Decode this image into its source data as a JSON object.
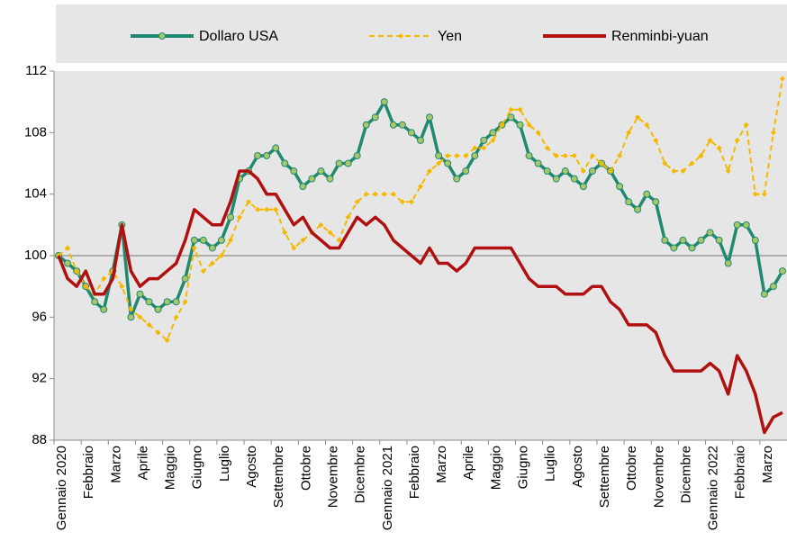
{
  "chart_data": {
    "type": "line",
    "categories": [
      "Gennaio 2020",
      null,
      null,
      "Febbraio",
      null,
      null,
      "Marzo",
      null,
      null,
      "Aprile",
      null,
      null,
      "Maggio",
      null,
      null,
      "Giugno",
      null,
      null,
      "Luglio",
      null,
      null,
      "Agosto",
      null,
      null,
      "Settembre",
      null,
      null,
      "Ottobre",
      null,
      null,
      "Novembre",
      null,
      null,
      "Dicembre",
      null,
      null,
      "Gennaio 2021",
      null,
      null,
      "Febbraio",
      null,
      null,
      "Marzo",
      null,
      null,
      "Aprile",
      null,
      null,
      "Maggio",
      null,
      null,
      "Giugno",
      null,
      null,
      "Luglio",
      null,
      null,
      "Agosto",
      null,
      null,
      "Settembre",
      null,
      null,
      "Ottobre",
      null,
      null,
      "Novembre",
      null,
      null,
      "Dicembre",
      null,
      null,
      "Gennaio 2022",
      null,
      null,
      "Febbraio",
      null,
      null,
      "Marzo",
      null,
      null
    ],
    "series": [
      {
        "name": "Dollaro USA",
        "color": "#1f8a70",
        "marker_color": "#a9c76a",
        "values": [
          100,
          99.5,
          99,
          98,
          97,
          96.5,
          99,
          102,
          96,
          97.5,
          97,
          96.5,
          97,
          97,
          98.5,
          101,
          101,
          100.5,
          101,
          102.5,
          105,
          105.5,
          106.5,
          106.5,
          107,
          106,
          105.5,
          104.5,
          105,
          105.5,
          105,
          106,
          106,
          106.5,
          108.5,
          109,
          110,
          108.5,
          108.5,
          108,
          107.5,
          109,
          106.5,
          106,
          105,
          105.5,
          106.5,
          107.5,
          108,
          108.5,
          109,
          108.5,
          106.5,
          106,
          105.5,
          105,
          105.5,
          105,
          104.5,
          105.5,
          106,
          105.5,
          104.5,
          103.5,
          103,
          104,
          103.5,
          101,
          100.5,
          101,
          100.5,
          101,
          101.5,
          101,
          99.5,
          102,
          102,
          101,
          97.5,
          98,
          99
        ]
      },
      {
        "name": "Yen",
        "color": "#f5b800",
        "dashed": true,
        "values": [
          100,
          100.5,
          99,
          98,
          97.5,
          98.5,
          99,
          98,
          96.5,
          96,
          95.5,
          95,
          94.5,
          96,
          97,
          100.5,
          99,
          99.5,
          100,
          101,
          102.5,
          103.5,
          103,
          103,
          103,
          101.5,
          100.5,
          101,
          101.5,
          102,
          101.5,
          101,
          102.5,
          103.5,
          104,
          104,
          104,
          104,
          103.5,
          103.5,
          104.5,
          105.5,
          106,
          106.5,
          106.5,
          106.5,
          107,
          107,
          107.5,
          108.5,
          109.5,
          109.5,
          108.5,
          108,
          107,
          106.5,
          106.5,
          106.5,
          105.5,
          106.5,
          106,
          105.5,
          106.5,
          108,
          109,
          108.5,
          107.5,
          106,
          105.5,
          105.5,
          106,
          106.5,
          107.5,
          107,
          105.5,
          107.5,
          108.5,
          104,
          104,
          108,
          111.5
        ]
      },
      {
        "name": "Renminbi-yuan",
        "color": "#b01010",
        "values": [
          100,
          98.5,
          98,
          99,
          97.5,
          97.5,
          98.5,
          102,
          99,
          98,
          98.5,
          98.5,
          99,
          99.5,
          101,
          103,
          102.5,
          102,
          102,
          103.5,
          105.5,
          105.5,
          105,
          104,
          104,
          103,
          102,
          102.5,
          101.5,
          101,
          100.5,
          100.5,
          101.5,
          102.5,
          102,
          102.5,
          102,
          101,
          100.5,
          100,
          99.5,
          100.5,
          99.5,
          99.5,
          99,
          99.5,
          100.5,
          100.5,
          100.5,
          100.5,
          100.5,
          99.5,
          98.5,
          98,
          98,
          98,
          97.5,
          97.5,
          97.5,
          98,
          98,
          97,
          96.5,
          95.5,
          95.5,
          95.5,
          95,
          93.5,
          92.5,
          92.5,
          92.5,
          92.5,
          93,
          92.5,
          91,
          93.5,
          92.5,
          91,
          88.5,
          89.5,
          89.8
        ]
      }
    ],
    "ylim": [
      88,
      112
    ],
    "yticks": [
      88,
      92,
      96,
      100,
      104,
      108,
      112
    ],
    "baseline": 100,
    "legend": "top"
  }
}
